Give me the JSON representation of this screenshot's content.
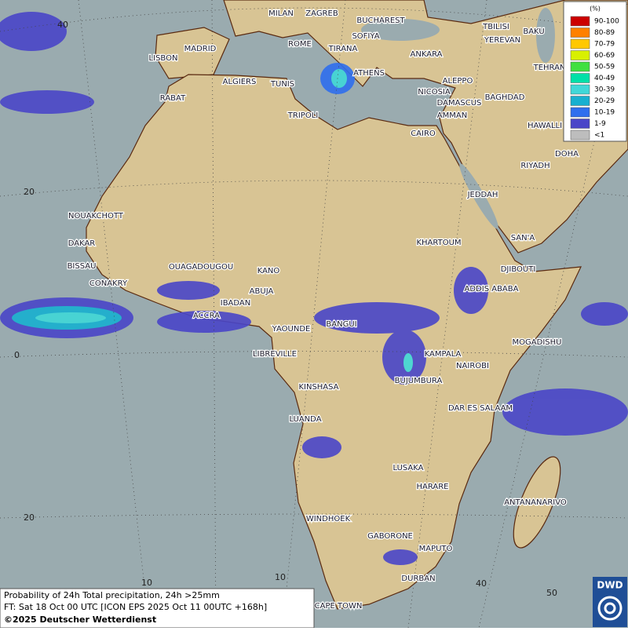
{
  "map": {
    "cities": [
      "MILAN",
      "ZAGREB",
      "BUCHAREST",
      "TBILISI",
      "BAKU",
      "MADRID",
      "ROME",
      "SOFIYA",
      "TIRANA",
      "ANKARA",
      "YEREVAN",
      "LISBON",
      "ATHENS",
      "TEHRAN",
      "ALGIERS",
      "TUNIS",
      "ALEPPO",
      "NICOSIA",
      "BAGHDAD",
      "RABAT",
      "DAMASCUS",
      "TRIPOLI",
      "AMMAN",
      "HAWALLI",
      "CAIRO",
      "DOHA",
      "RIYADH",
      "JEDDAH",
      "NOUAKCHOTT",
      "SAN'A",
      "DAKAR",
      "KHARTOUM",
      "BISSAU",
      "OUAGADOUGOU",
      "KANO",
      "DJIBOUTI",
      "CONAKRY",
      "ABUJA",
      "ADDIS ABABA",
      "IBADAN",
      "ACCRA",
      "BANGUI",
      "YAOUNDE",
      "MOGADISHU",
      "LIBREVILLE",
      "KAMPALA",
      "NAIROBI",
      "KINSHASA",
      "BUJUMBURA",
      "DAR ES SALAAM",
      "LUANDA",
      "LUSAKA",
      "HARARE",
      "ANTANANARIVO",
      "WINDHOEK",
      "GABORONE",
      "MAPUTO",
      "DURBAN",
      "CAPE TOWN"
    ],
    "lat_labels": [
      "40",
      "20",
      "0",
      "20"
    ],
    "lon_labels": [
      "10",
      "10",
      "40",
      "50"
    ]
  },
  "legend": {
    "unit": "(%)",
    "classes": [
      {
        "label": "90-100",
        "color": "#cc0000"
      },
      {
        "label": "80-89",
        "color": "#ff8000"
      },
      {
        "label": "70-79",
        "color": "#ffc800"
      },
      {
        "label": "60-69",
        "color": "#d8f000"
      },
      {
        "label": "50-59",
        "color": "#40e040"
      },
      {
        "label": "40-49",
        "color": "#00e0a8"
      },
      {
        "label": "30-39",
        "color": "#40d8d8"
      },
      {
        "label": "20-29",
        "color": "#18b0d0"
      },
      {
        "label": "10-19",
        "color": "#2f6fee"
      },
      {
        "label": "1-9",
        "color": "#4a46c8"
      },
      {
        "label": "<1",
        "color": "#bdbdbd"
      }
    ]
  },
  "footer": {
    "line1": "Probability of 24h Total precipitation, 24h >25mm",
    "line2": "FT: Sat 18 Oct 00 UTC [ICON EPS 2025 Oct 11 00UTC +168h]",
    "line3": "©2025 Deutscher Wetterdienst"
  },
  "logo": "DWD"
}
